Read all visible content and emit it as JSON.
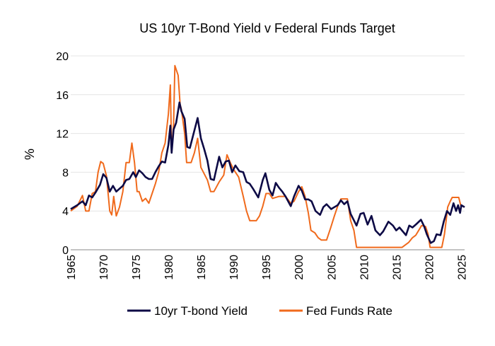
{
  "chart_data": {
    "type": "line",
    "title": "US 10yr T-Bond Yield v Federal Funds Target",
    "xlabel": "",
    "ylabel": "%",
    "xlim": [
      1965,
      2025.5
    ],
    "ylim": [
      0,
      20
    ],
    "x_ticks": [
      "1965",
      "1970",
      "1975",
      "1980",
      "1985",
      "1990",
      "1995",
      "2000",
      "2005",
      "2010",
      "2015",
      "2020",
      "2025"
    ],
    "y_ticks": [
      "0",
      "4",
      "8",
      "12",
      "16",
      "20"
    ],
    "grid": "horizontal",
    "legend_position": "bottom",
    "series": [
      {
        "name": "10yr T-bond Yield",
        "color": "#0d0a45",
        "points": [
          [
            1965.0,
            4.2
          ],
          [
            1966.0,
            4.6
          ],
          [
            1966.8,
            5.0
          ],
          [
            1967.3,
            4.6
          ],
          [
            1967.8,
            5.6
          ],
          [
            1968.3,
            5.4
          ],
          [
            1968.8,
            5.9
          ],
          [
            1969.5,
            6.7
          ],
          [
            1970.0,
            7.8
          ],
          [
            1970.5,
            7.4
          ],
          [
            1971.0,
            6.0
          ],
          [
            1971.5,
            6.6
          ],
          [
            1972.0,
            6.0
          ],
          [
            1972.5,
            6.3
          ],
          [
            1973.0,
            6.6
          ],
          [
            1973.5,
            7.2
          ],
          [
            1974.0,
            7.3
          ],
          [
            1974.6,
            8.0
          ],
          [
            1975.0,
            7.5
          ],
          [
            1975.5,
            8.2
          ],
          [
            1976.0,
            7.9
          ],
          [
            1976.5,
            7.5
          ],
          [
            1977.0,
            7.3
          ],
          [
            1977.5,
            7.3
          ],
          [
            1978.0,
            8.0
          ],
          [
            1978.5,
            8.6
          ],
          [
            1979.0,
            9.1
          ],
          [
            1979.5,
            9.0
          ],
          [
            1980.0,
            10.8
          ],
          [
            1980.3,
            12.8
          ],
          [
            1980.5,
            10.0
          ],
          [
            1980.8,
            12.4
          ],
          [
            1981.2,
            13.1
          ],
          [
            1981.7,
            15.2
          ],
          [
            1982.0,
            14.3
          ],
          [
            1982.5,
            13.5
          ],
          [
            1982.9,
            10.6
          ],
          [
            1983.3,
            10.5
          ],
          [
            1983.8,
            11.8
          ],
          [
            1984.5,
            13.6
          ],
          [
            1985.0,
            11.5
          ],
          [
            1985.5,
            10.4
          ],
          [
            1986.0,
            9.2
          ],
          [
            1986.5,
            7.3
          ],
          [
            1987.0,
            7.2
          ],
          [
            1987.8,
            9.6
          ],
          [
            1988.3,
            8.5
          ],
          [
            1988.8,
            9.1
          ],
          [
            1989.3,
            9.2
          ],
          [
            1989.8,
            8.0
          ],
          [
            1990.3,
            8.7
          ],
          [
            1990.9,
            8.1
          ],
          [
            1991.5,
            8.0
          ],
          [
            1992.0,
            7.0
          ],
          [
            1992.5,
            6.8
          ],
          [
            1993.0,
            6.3
          ],
          [
            1993.8,
            5.4
          ],
          [
            1994.5,
            7.2
          ],
          [
            1994.9,
            7.9
          ],
          [
            1995.5,
            6.2
          ],
          [
            1996.0,
            5.6
          ],
          [
            1996.5,
            6.9
          ],
          [
            1997.0,
            6.4
          ],
          [
            1997.5,
            6.0
          ],
          [
            1998.0,
            5.5
          ],
          [
            1998.8,
            4.5
          ],
          [
            1999.3,
            5.5
          ],
          [
            2000.0,
            6.6
          ],
          [
            2000.5,
            6.1
          ],
          [
            2001.0,
            5.2
          ],
          [
            2001.5,
            5.2
          ],
          [
            2002.0,
            5.0
          ],
          [
            2002.6,
            4.0
          ],
          [
            2003.3,
            3.6
          ],
          [
            2003.8,
            4.4
          ],
          [
            2004.3,
            4.7
          ],
          [
            2005.0,
            4.2
          ],
          [
            2005.5,
            4.4
          ],
          [
            2006.0,
            4.6
          ],
          [
            2006.5,
            5.1
          ],
          [
            2007.0,
            4.7
          ],
          [
            2007.5,
            5.0
          ],
          [
            2008.0,
            3.7
          ],
          [
            2008.9,
            2.5
          ],
          [
            2009.5,
            3.7
          ],
          [
            2010.0,
            3.8
          ],
          [
            2010.6,
            2.6
          ],
          [
            2011.2,
            3.5
          ],
          [
            2011.8,
            2.0
          ],
          [
            2012.5,
            1.5
          ],
          [
            2013.0,
            1.9
          ],
          [
            2013.8,
            2.9
          ],
          [
            2014.5,
            2.5
          ],
          [
            2015.0,
            2.0
          ],
          [
            2015.5,
            2.3
          ],
          [
            2016.5,
            1.5
          ],
          [
            2017.0,
            2.5
          ],
          [
            2017.5,
            2.3
          ],
          [
            2018.0,
            2.6
          ],
          [
            2018.8,
            3.1
          ],
          [
            2019.3,
            2.4
          ],
          [
            2019.7,
            1.6
          ],
          [
            2020.3,
            0.7
          ],
          [
            2020.8,
            0.9
          ],
          [
            2021.2,
            1.6
          ],
          [
            2021.8,
            1.5
          ],
          [
            2022.3,
            2.9
          ],
          [
            2022.8,
            4.0
          ],
          [
            2023.3,
            3.6
          ],
          [
            2023.8,
            4.8
          ],
          [
            2024.2,
            4.0
          ],
          [
            2024.5,
            4.6
          ],
          [
            2024.8,
            3.8
          ],
          [
            2025.0,
            4.6
          ],
          [
            2025.5,
            4.4
          ]
        ]
      },
      {
        "name": "Fed Funds Rate",
        "color": "#f06a1c",
        "points": [
          [
            1965.0,
            4.0
          ],
          [
            1966.0,
            4.5
          ],
          [
            1966.8,
            5.6
          ],
          [
            1967.3,
            4.0
          ],
          [
            1967.8,
            4.0
          ],
          [
            1968.3,
            5.8
          ],
          [
            1968.8,
            6.0
          ],
          [
            1969.2,
            8.0
          ],
          [
            1969.6,
            9.1
          ],
          [
            1970.0,
            8.9
          ],
          [
            1970.5,
            7.6
          ],
          [
            1971.0,
            4.0
          ],
          [
            1971.3,
            3.6
          ],
          [
            1971.6,
            5.5
          ],
          [
            1972.0,
            3.5
          ],
          [
            1972.5,
            4.4
          ],
          [
            1973.0,
            6.0
          ],
          [
            1973.5,
            9.0
          ],
          [
            1974.0,
            9.0
          ],
          [
            1974.4,
            11.0
          ],
          [
            1974.8,
            9.0
          ],
          [
            1975.2,
            6.0
          ],
          [
            1975.5,
            6.0
          ],
          [
            1976.0,
            5.0
          ],
          [
            1976.5,
            5.3
          ],
          [
            1977.0,
            4.8
          ],
          [
            1977.5,
            5.8
          ],
          [
            1978.0,
            6.8
          ],
          [
            1978.5,
            8.0
          ],
          [
            1979.0,
            10.0
          ],
          [
            1979.5,
            11.0
          ],
          [
            1980.0,
            14.0
          ],
          [
            1980.3,
            17.0
          ],
          [
            1980.5,
            10.0
          ],
          [
            1980.8,
            13.0
          ],
          [
            1981.0,
            19.0
          ],
          [
            1981.5,
            18.0
          ],
          [
            1981.8,
            15.0
          ],
          [
            1982.0,
            14.5
          ],
          [
            1982.5,
            12.0
          ],
          [
            1982.8,
            9.0
          ],
          [
            1983.5,
            9.0
          ],
          [
            1984.0,
            10.0
          ],
          [
            1984.5,
            11.5
          ],
          [
            1985.0,
            8.5
          ],
          [
            1986.0,
            7.2
          ],
          [
            1986.5,
            6.0
          ],
          [
            1987.0,
            6.0
          ],
          [
            1987.8,
            7.0
          ],
          [
            1988.5,
            7.7
          ],
          [
            1989.0,
            9.8
          ],
          [
            1989.5,
            9.0
          ],
          [
            1990.0,
            8.3
          ],
          [
            1990.8,
            7.5
          ],
          [
            1991.5,
            5.5
          ],
          [
            1992.0,
            4.0
          ],
          [
            1992.5,
            3.0
          ],
          [
            1993.5,
            3.0
          ],
          [
            1994.0,
            3.5
          ],
          [
            1994.5,
            4.5
          ],
          [
            1995.0,
            5.8
          ],
          [
            1995.5,
            5.8
          ],
          [
            1996.0,
            5.3
          ],
          [
            1997.0,
            5.5
          ],
          [
            1998.0,
            5.5
          ],
          [
            1998.8,
            4.8
          ],
          [
            1999.3,
            5.0
          ],
          [
            2000.0,
            6.0
          ],
          [
            2000.5,
            6.5
          ],
          [
            2001.0,
            5.5
          ],
          [
            2001.5,
            3.8
          ],
          [
            2001.9,
            2.0
          ],
          [
            2002.5,
            1.75
          ],
          [
            2003.0,
            1.25
          ],
          [
            2003.5,
            1.0
          ],
          [
            2004.3,
            1.0
          ],
          [
            2004.9,
            2.2
          ],
          [
            2005.5,
            3.5
          ],
          [
            2006.0,
            4.5
          ],
          [
            2006.5,
            5.25
          ],
          [
            2007.5,
            5.25
          ],
          [
            2008.0,
            3.0
          ],
          [
            2008.5,
            2.0
          ],
          [
            2008.9,
            0.25
          ],
          [
            2015.9,
            0.25
          ],
          [
            2016.9,
            0.75
          ],
          [
            2017.5,
            1.25
          ],
          [
            2018.0,
            1.5
          ],
          [
            2018.9,
            2.5
          ],
          [
            2019.5,
            2.4
          ],
          [
            2019.9,
            1.6
          ],
          [
            2020.2,
            0.25
          ],
          [
            2022.0,
            0.25
          ],
          [
            2022.4,
            1.6
          ],
          [
            2022.7,
            3.2
          ],
          [
            2022.9,
            4.4
          ],
          [
            2023.3,
            5.0
          ],
          [
            2023.6,
            5.4
          ],
          [
            2024.6,
            5.4
          ],
          [
            2024.9,
            4.6
          ],
          [
            2025.5,
            4.4
          ]
        ]
      }
    ]
  }
}
